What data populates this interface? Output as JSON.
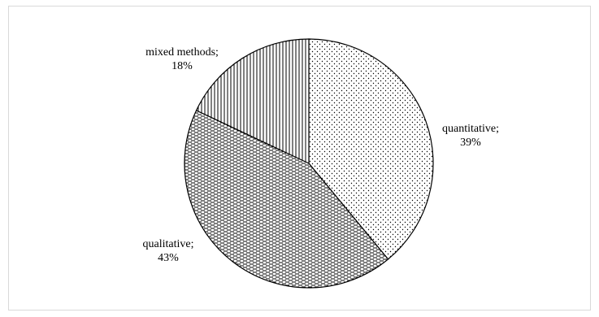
{
  "chart_data": {
    "type": "pie",
    "title": "",
    "slices": [
      {
        "name": "quantitative",
        "value": 39,
        "label_line1": "quantitative;",
        "label_line2": "39%",
        "pattern": "dots"
      },
      {
        "name": "qualitative",
        "value": 43,
        "label_line1": "qualitative;",
        "label_line2": "43%",
        "pattern": "horizontal-dashes"
      },
      {
        "name": "mixed methods",
        "value": 18,
        "label_line1": "mixed methods;",
        "label_line2": "18%",
        "pattern": "vertical-lines"
      }
    ],
    "start_angle_deg": 0,
    "direction": "clockwise",
    "legend": "none",
    "colors": {
      "stroke": "#000000",
      "fill": "#ffffff",
      "pattern": "#000000"
    }
  }
}
